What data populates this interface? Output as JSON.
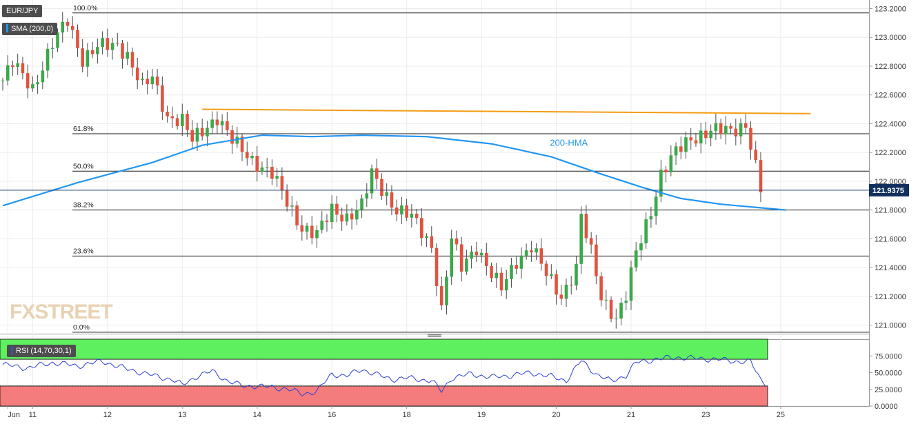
{
  "chart_data": [
    {
      "type": "candlestick",
      "symbol": "EUR/JPY",
      "indicator_label": "SMA (200,0)",
      "hma_label": "200-HMA",
      "last_price": "121.9375",
      "ylim": [
        120.94,
        123.26
      ],
      "y_ticks": [
        "123.2000",
        "123.0000",
        "122.8000",
        "122.6000",
        "122.4000",
        "122.2000",
        "122.0000",
        "121.8000",
        "121.6000",
        "121.4000",
        "121.2000",
        "121.0000"
      ],
      "x_labels": [
        {
          "label": "Jun",
          "slot": 1
        },
        {
          "label": "11",
          "slot": 6
        },
        {
          "label": "12",
          "slot": 21
        },
        {
          "label": "13",
          "slot": 36
        },
        {
          "label": "14",
          "slot": 51
        },
        {
          "label": "16",
          "slot": 66
        },
        {
          "label": "18",
          "slot": 81
        },
        {
          "label": "19",
          "slot": 96
        },
        {
          "label": "20",
          "slot": 111
        },
        {
          "label": "21",
          "slot": 126
        },
        {
          "label": "23",
          "slot": 141
        },
        {
          "label": "25",
          "slot": 156
        }
      ],
      "fib_levels": [
        {
          "label": "100.0%",
          "value": 123.17
        },
        {
          "label": "61.8%",
          "value": 122.33
        },
        {
          "label": "50.0%",
          "value": 122.07
        },
        {
          "label": "38.2%",
          "value": 121.8
        },
        {
          "label": "23.6%",
          "value": 121.48
        },
        {
          "label": "0.0%",
          "value": 120.95
        }
      ],
      "resistance_line": {
        "from": [
          40,
          122.5
        ],
        "to": [
          162,
          122.47
        ]
      },
      "hma_points": [
        [
          0,
          121.83
        ],
        [
          15,
          121.99
        ],
        [
          30,
          122.13
        ],
        [
          40,
          122.25
        ],
        [
          52,
          122.32
        ],
        [
          62,
          122.31
        ],
        [
          72,
          122.32
        ],
        [
          85,
          122.31
        ],
        [
          98,
          122.26
        ],
        [
          110,
          122.17
        ],
        [
          120,
          122.05
        ],
        [
          128,
          121.96
        ],
        [
          136,
          121.88
        ],
        [
          144,
          121.84
        ],
        [
          157,
          121.8
        ]
      ],
      "close_path": [
        [
          0,
          122.7
        ],
        [
          2,
          122.82
        ],
        [
          6,
          122.65
        ],
        [
          10,
          122.95
        ],
        [
          13,
          123.12
        ],
        [
          16,
          122.85
        ],
        [
          19,
          122.93
        ],
        [
          23,
          122.95
        ],
        [
          25,
          122.88
        ],
        [
          28,
          122.65
        ],
        [
          30,
          122.72
        ],
        [
          33,
          122.45
        ],
        [
          36,
          122.42
        ],
        [
          38,
          122.28
        ],
        [
          40,
          122.35
        ],
        [
          43,
          122.45
        ],
        [
          46,
          122.28
        ],
        [
          50,
          122.15
        ],
        [
          54,
          122.05
        ],
        [
          57,
          121.85
        ],
        [
          60,
          121.68
        ],
        [
          63,
          121.63
        ],
        [
          66,
          121.8
        ],
        [
          69,
          121.75
        ],
        [
          72,
          121.83
        ],
        [
          74,
          122.05
        ],
        [
          76,
          121.95
        ],
        [
          79,
          121.8
        ],
        [
          82,
          121.75
        ],
        [
          86,
          121.55
        ],
        [
          88,
          121.1
        ],
        [
          89,
          121.35
        ],
        [
          90,
          121.6
        ],
        [
          92,
          121.4
        ],
        [
          95,
          121.55
        ],
        [
          98,
          121.35
        ],
        [
          100,
          121.25
        ],
        [
          103,
          121.45
        ],
        [
          106,
          121.55
        ],
        [
          109,
          121.35
        ],
        [
          112,
          121.2
        ],
        [
          115,
          121.4
        ],
        [
          116,
          121.75
        ],
        [
          118,
          121.5
        ],
        [
          120,
          121.2
        ],
        [
          123,
          121.05
        ],
        [
          125,
          121.2
        ],
        [
          127,
          121.5
        ],
        [
          130,
          121.8
        ],
        [
          132,
          122.05
        ],
        [
          135,
          122.2
        ],
        [
          138,
          122.3
        ],
        [
          142,
          122.35
        ],
        [
          146,
          122.35
        ],
        [
          149,
          122.4
        ],
        [
          150,
          122.25
        ],
        [
          152,
          121.94
        ]
      ],
      "rsi": {
        "label": "RSI (14,70,30,1)",
        "overbought": 70,
        "oversold": 30,
        "y_ticks": [
          "75.0000",
          "50.0000",
          "25.0000",
          "0.0000"
        ],
        "points": [
          [
            0,
            62
          ],
          [
            5,
            57
          ],
          [
            10,
            65
          ],
          [
            15,
            60
          ],
          [
            20,
            67
          ],
          [
            25,
            55
          ],
          [
            28,
            50
          ],
          [
            31,
            44
          ],
          [
            34,
            40
          ],
          [
            36,
            31
          ],
          [
            39,
            45
          ],
          [
            42,
            52
          ],
          [
            45,
            38
          ],
          [
            48,
            30
          ],
          [
            51,
            30
          ],
          [
            54,
            28
          ],
          [
            57,
            26
          ],
          [
            60,
            18
          ],
          [
            63,
            22
          ],
          [
            66,
            48
          ],
          [
            69,
            45
          ],
          [
            72,
            55
          ],
          [
            75,
            47
          ],
          [
            78,
            40
          ],
          [
            81,
            42
          ],
          [
            86,
            38
          ],
          [
            88,
            22
          ],
          [
            90,
            42
          ],
          [
            94,
            48
          ],
          [
            98,
            43
          ],
          [
            102,
            46
          ],
          [
            106,
            50
          ],
          [
            110,
            44
          ],
          [
            113,
            38
          ],
          [
            116,
            68
          ],
          [
            119,
            48
          ],
          [
            122,
            37
          ],
          [
            125,
            46
          ],
          [
            127,
            65
          ],
          [
            131,
            70
          ],
          [
            135,
            73
          ],
          [
            139,
            71
          ],
          [
            143,
            70
          ],
          [
            147,
            67
          ],
          [
            150,
            66
          ],
          [
            152,
            40
          ],
          [
            153,
            34
          ]
        ]
      }
    }
  ],
  "watermark": "FXSTREET"
}
